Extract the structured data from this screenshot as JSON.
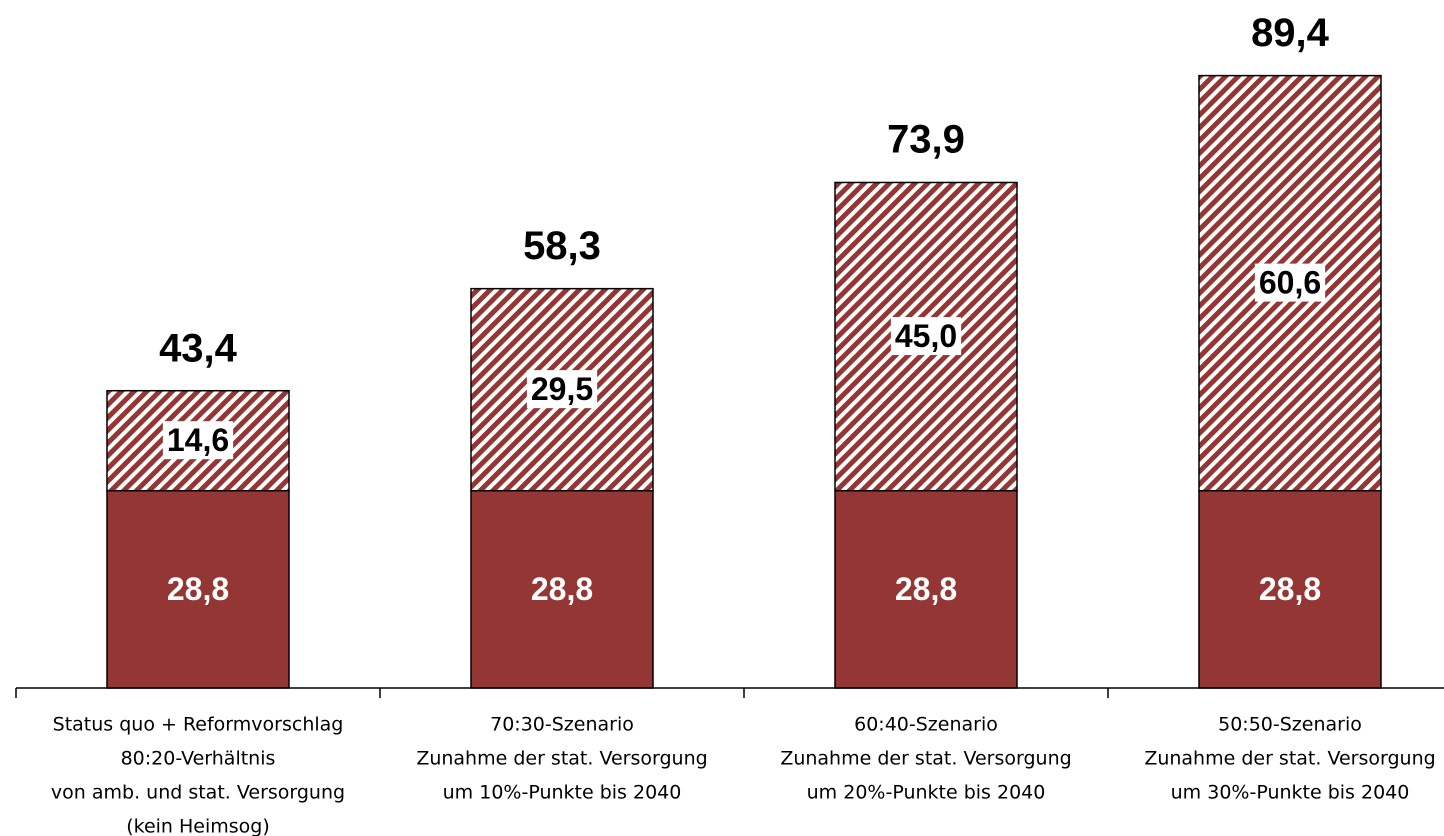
{
  "chart_data": {
    "type": "stacked_bar",
    "categories": [
      [
        "Status quo + Reformvorschlag",
        "80:20-Verhältnis",
        "von amb. und stat. Versorgung",
        "(kein Heimsog)"
      ],
      [
        "70:30-Szenario",
        "Zunahme der stat. Versorgung",
        "um 10%-Punkte bis 2040"
      ],
      [
        "60:40-Szenario",
        "Zunahme der stat. Versorgung",
        "um 20%-Punkte bis 2040"
      ],
      [
        "50:50-Szenario",
        "Zunahme der stat. Versorgung",
        "um 30%-Punkte bis 2040"
      ]
    ],
    "series": [
      {
        "color": "#943634",
        "values": [
          28.8,
          28.8,
          28.8,
          28.8
        ],
        "value_labels": [
          "28,8",
          "28,8",
          "28,8",
          "28,8"
        ]
      },
      {
        "color": "#943634",
        "pattern": "hatch",
        "values": [
          14.6,
          29.5,
          45.0,
          60.6
        ],
        "value_labels": [
          "14,6",
          "29,5",
          "45,0",
          "60,6"
        ]
      }
    ],
    "totals": [
      43.4,
      58.3,
      73.9,
      89.4
    ],
    "total_labels": [
      "43,4",
      "58,3",
      "73,9",
      "89,4"
    ],
    "ylim": [
      0,
      100
    ]
  }
}
